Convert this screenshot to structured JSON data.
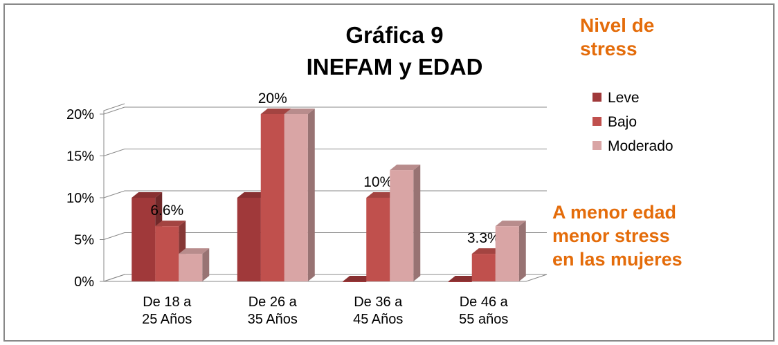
{
  "chart_data": {
    "type": "bar3d",
    "title": "Gráfica 9\nINEFAM y EDAD",
    "legend_title": "Nivel de\nstress",
    "annotation": "A menor edad\nmenor stress\nen las mujeres",
    "categories": [
      "De 18 a\n25 Años",
      "De 26 a\n35 Años",
      "De 36 a\n45 Años",
      "De 46 a\n55 años"
    ],
    "series": [
      {
        "name": "Leve",
        "color": "#a0393a",
        "values": [
          10,
          10,
          0,
          0
        ]
      },
      {
        "name": "Bajo",
        "color": "#c0504d",
        "values": [
          6.6,
          20,
          10,
          3.3
        ],
        "value_labels": [
          "6.6%",
          "20%",
          "10%",
          "3.3%"
        ]
      },
      {
        "name": "Moderado",
        "color": "#d9a5a5",
        "values": [
          3.3,
          20,
          13.3,
          6.6
        ]
      }
    ],
    "ylim": [
      0,
      20
    ],
    "yticks": [
      {
        "value": 0,
        "label": "0%"
      },
      {
        "value": 5,
        "label": "5%"
      },
      {
        "value": 10,
        "label": "10%"
      },
      {
        "value": 15,
        "label": "15%"
      },
      {
        "value": 20,
        "label": "20%"
      }
    ],
    "grid": true,
    "legend": "right"
  }
}
